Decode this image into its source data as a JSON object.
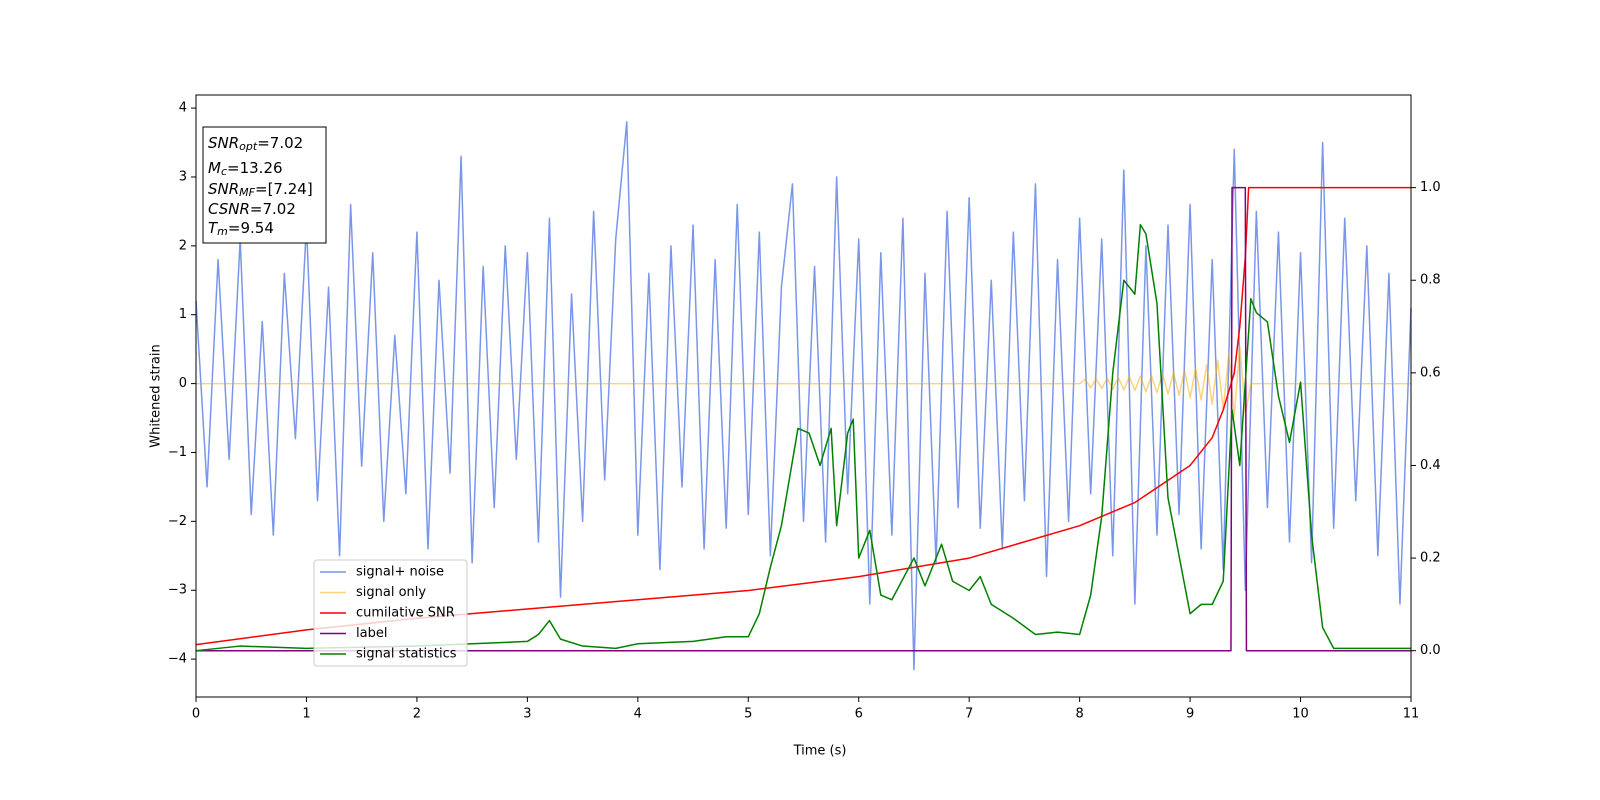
{
  "chart_data": {
    "type": "line",
    "xlabel": "Time (s)",
    "ylabel": "Whitened strain",
    "xlim": [
      0,
      11
    ],
    "xticks": [
      0,
      1,
      2,
      3,
      4,
      5,
      6,
      7,
      8,
      9,
      10,
      11
    ],
    "ylim": [
      -4.55,
      4.19
    ],
    "yticks": [
      {
        "value": -4,
        "label": "−4"
      },
      {
        "value": -3,
        "label": "−3"
      },
      {
        "value": -2,
        "label": "−2"
      },
      {
        "value": -1,
        "label": "−1"
      },
      0,
      1,
      2,
      3,
      4
    ],
    "y2lim": [
      -0.1,
      1.2
    ],
    "y2ticks": [
      {
        "value": 0,
        "label": "0.0"
      },
      0.2,
      0.4,
      0.6,
      0.8,
      {
        "value": 1,
        "label": "1.0"
      }
    ],
    "legend": "lower left",
    "annotations": [
      {
        "symbol": "SNR",
        "subscript": "opt",
        "text": "=7.02"
      },
      {
        "symbol": "M",
        "subscript": "c",
        "text": "=13.26"
      },
      {
        "symbol": "SNR",
        "subscript": "MF",
        "text": "=[7.24]"
      },
      {
        "symbol": "CSNR",
        "text": "=7.02"
      },
      {
        "symbol": "T",
        "subscript": "m",
        "text": "=9.54"
      }
    ],
    "series": [
      {
        "name": "signal+ noise",
        "color": "#4169e1",
        "x": [
          0,
          0.1,
          0.2,
          0.3,
          0.4,
          0.5,
          0.6,
          0.7,
          0.8,
          0.9,
          1,
          1.1,
          1.2,
          1.3,
          1.4,
          1.5,
          1.6,
          1.7,
          1.8,
          1.9,
          2,
          2.1,
          2.2,
          2.3,
          2.4,
          2.5,
          2.6,
          2.7,
          2.8,
          2.9,
          3,
          3.1,
          3.2,
          3.3,
          3.4,
          3.5,
          3.6,
          3.7,
          3.8,
          3.9,
          4,
          4.1,
          4.2,
          4.3,
          4.4,
          4.5,
          4.6,
          4.7,
          4.8,
          4.9,
          5,
          5.1,
          5.2,
          5.3,
          5.4,
          5.5,
          5.6,
          5.7,
          5.8,
          5.9,
          6,
          6.1,
          6.2,
          6.3,
          6.4,
          6.5,
          6.6,
          6.7,
          6.8,
          6.9,
          7,
          7.1,
          7.2,
          7.3,
          7.4,
          7.5,
          7.6,
          7.7,
          7.8,
          7.9,
          8,
          8.1,
          8.2,
          8.3,
          8.4,
          8.5,
          8.6,
          8.7,
          8.8,
          8.9,
          9,
          9.1,
          9.2,
          9.3,
          9.4,
          9.5,
          9.6,
          9.7,
          9.8,
          9.9,
          10,
          10.1,
          10.2,
          10.3,
          10.4,
          10.5,
          10.6,
          10.7,
          10.8,
          10.9,
          11
        ],
        "values": [
          1.2,
          -1.5,
          1.8,
          -1.1,
          2.1,
          -1.9,
          0.9,
          -2.2,
          1.6,
          -0.8,
          2.3,
          -1.7,
          1.4,
          -2.5,
          2.6,
          -1.2,
          1.9,
          -2.0,
          0.7,
          -1.6,
          2.2,
          -2.4,
          1.5,
          -1.3,
          3.3,
          -2.6,
          1.7,
          -1.8,
          2.0,
          -1.1,
          1.9,
          -2.3,
          2.4,
          -3.1,
          1.3,
          -2.0,
          2.5,
          -1.4,
          2.1,
          3.8,
          -2.2,
          1.6,
          -2.7,
          2.0,
          -1.5,
          2.3,
          -2.4,
          1.8,
          -2.1,
          2.6,
          -1.9,
          2.2,
          -2.5,
          1.4,
          2.9,
          -2.0,
          1.7,
          -2.3,
          3.0,
          -1.6,
          2.1,
          -3.2,
          1.9,
          -2.2,
          2.4,
          -4.15,
          1.6,
          -2.6,
          2.5,
          -1.8,
          2.7,
          -2.1,
          1.5,
          -2.4,
          2.2,
          -1.7,
          2.9,
          -2.8,
          1.8,
          -2.0,
          2.4,
          -1.6,
          2.1,
          -2.5,
          3.1,
          -3.2,
          2.0,
          -2.2,
          2.3,
          -1.9,
          2.6,
          -2.4,
          1.8,
          -2.7,
          3.4,
          -3.0,
          2.5,
          -1.8,
          2.2,
          -2.3,
          1.9,
          -2.6,
          3.5,
          -2.1,
          2.4,
          -1.7,
          2.0,
          -2.5,
          1.6,
          -3.2,
          1.1
        ]
      },
      {
        "name": "signal only",
        "color": "#ffa500",
        "x": [
          0,
          0.5,
          1,
          1.5,
          2,
          2.5,
          3,
          3.5,
          4,
          4.5,
          5,
          5.5,
          6,
          6.5,
          7,
          7.5,
          8,
          8.05,
          8.1,
          8.15,
          8.2,
          8.25,
          8.3,
          8.35,
          8.4,
          8.45,
          8.5,
          8.55,
          8.6,
          8.65,
          8.7,
          8.75,
          8.8,
          8.85,
          8.9,
          8.95,
          9,
          9.05,
          9.1,
          9.15,
          9.2,
          9.25,
          9.3,
          9.35,
          9.4,
          9.45,
          9.5,
          9.55,
          11
        ],
        "values": [
          0,
          0,
          0,
          0,
          0,
          0,
          0,
          0,
          0,
          0,
          0,
          0,
          0,
          0,
          0,
          0,
          0,
          0.06,
          -0.06,
          0.07,
          -0.07,
          0.08,
          -0.08,
          0.09,
          -0.09,
          0.1,
          -0.1,
          0.11,
          -0.12,
          0.12,
          -0.13,
          0.14,
          -0.15,
          0.16,
          -0.17,
          0.19,
          -0.2,
          0.22,
          -0.24,
          0.27,
          -0.3,
          0.34,
          -0.38,
          0.43,
          -0.48,
          0.55,
          -0.45,
          0,
          0
        ]
      },
      {
        "name": "cumilative SNR",
        "color": "#ff0000",
        "axis": "y2",
        "x": [
          0,
          1,
          2,
          3,
          4,
          5,
          6,
          7,
          8,
          8.5,
          9,
          9.2,
          9.3,
          9.4,
          9.45,
          9.5,
          9.53,
          11
        ],
        "values": [
          0.013,
          0.045,
          0.07,
          0.09,
          0.11,
          0.13,
          0.16,
          0.2,
          0.27,
          0.32,
          0.4,
          0.46,
          0.52,
          0.6,
          0.7,
          0.85,
          1.0,
          1.0
        ]
      },
      {
        "name": "label",
        "color": "#800080",
        "axis": "y2",
        "x": [
          0,
          9.37,
          9.38,
          9.5,
          9.51,
          11
        ],
        "values": [
          0,
          0,
          1,
          1,
          0,
          0
        ]
      },
      {
        "name": "signal statistics",
        "color": "#008000",
        "axis": "y2",
        "x": [
          0,
          0.4,
          1,
          2,
          2.5,
          3,
          3.1,
          3.2,
          3.3,
          3.5,
          3.8,
          4,
          4.5,
          4.8,
          5,
          5.1,
          5.2,
          5.3,
          5.45,
          5.55,
          5.65,
          5.75,
          5.8,
          5.9,
          5.95,
          6,
          6.1,
          6.2,
          6.3,
          6.5,
          6.6,
          6.75,
          6.85,
          7,
          7.1,
          7.2,
          7.4,
          7.6,
          7.8,
          8,
          8.1,
          8.2,
          8.3,
          8.4,
          8.5,
          8.55,
          8.6,
          8.7,
          8.8,
          9,
          9.1,
          9.2,
          9.3,
          9.38,
          9.45,
          9.55,
          9.6,
          9.7,
          9.8,
          9.9,
          10,
          10.1,
          10.2,
          10.3,
          11
        ],
        "values": [
          0,
          0.01,
          0.005,
          0.01,
          0.015,
          0.02,
          0.035,
          0.065,
          0.025,
          0.01,
          0.005,
          0.015,
          0.02,
          0.03,
          0.03,
          0.08,
          0.18,
          0.27,
          0.48,
          0.47,
          0.4,
          0.48,
          0.27,
          0.47,
          0.5,
          0.2,
          0.26,
          0.12,
          0.11,
          0.2,
          0.14,
          0.23,
          0.15,
          0.13,
          0.16,
          0.1,
          0.07,
          0.035,
          0.04,
          0.035,
          0.12,
          0.29,
          0.6,
          0.8,
          0.77,
          0.92,
          0.9,
          0.75,
          0.33,
          0.08,
          0.1,
          0.1,
          0.15,
          0.52,
          0.4,
          0.76,
          0.73,
          0.71,
          0.55,
          0.45,
          0.58,
          0.25,
          0.05,
          0.005,
          0.005
        ]
      }
    ]
  }
}
